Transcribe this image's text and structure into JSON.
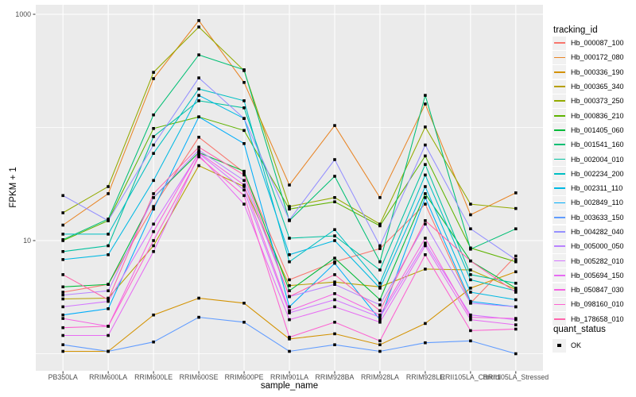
{
  "chart_data": {
    "type": "line",
    "title": "",
    "xlabel": "sample_name",
    "ylabel": "FPKM + 1",
    "y_scale": "log10",
    "ylim": [
      0.7,
      1230
    ],
    "y_ticks": [
      {
        "label": "10",
        "value": 10
      },
      {
        "label": "1000",
        "value": 1000
      }
    ],
    "y_gridlines_major": [
      10,
      1000
    ],
    "y_gridlines_minor": [
      1,
      100
    ],
    "grid": true,
    "legend_position": "right",
    "panel_bg": "#EBEBEB",
    "grid_color": "#FFFFFF",
    "tick_text_color": "#4D4D4D",
    "categories": [
      "PB350LA",
      "RRIM600LA",
      "RRIM600LE",
      "RRIM600SE",
      "RRIM600PE",
      "RRIM901LA",
      "RRIM928BA",
      "RRIM928LA",
      "RRIM928LE",
      "RRII105LA_Control",
      "RRII105LA_Stressed"
    ],
    "legend_title": "tracking_id",
    "marker": {
      "shape": "square",
      "color": "#000000",
      "size": 3.6
    },
    "series": [
      {
        "name": "Hb_000087_100",
        "color": "#F8766D",
        "values": [
          3.5,
          4.1,
          20,
          82,
          40,
          4.5,
          6.5,
          8.5,
          21,
          2.8,
          7.3
        ]
      },
      {
        "name": "Hb_000172_080",
        "color": "#E88526",
        "values": [
          13.7,
          26,
          270,
          880,
          250,
          31,
          104,
          24,
          161,
          16.9,
          26.4
        ]
      },
      {
        "name": "Hb_000336_190",
        "color": "#D39200",
        "values": [
          1.05,
          1.05,
          2.2,
          3.1,
          2.8,
          1.35,
          1.5,
          1.2,
          1.85,
          3.8,
          5.3
        ]
      },
      {
        "name": "Hb_000365_340",
        "color": "#B79F00",
        "values": [
          3.05,
          3.1,
          9,
          46,
          30,
          4.0,
          4.3,
          3.9,
          5.6,
          5.5,
          3.7
        ]
      },
      {
        "name": "Hb_000373_250",
        "color": "#93AA00",
        "values": [
          17.6,
          30,
          307,
          772,
          318,
          20,
          24,
          14,
          101,
          21,
          19.2
        ]
      },
      {
        "name": "Hb_000836_210",
        "color": "#5EB300",
        "values": [
          10,
          15,
          98,
          124,
          94,
          19,
          22,
          13.5,
          56,
          8.6,
          6.5
        ]
      },
      {
        "name": "Hb_001405_060",
        "color": "#00BA38",
        "values": [
          3.9,
          4.1,
          24,
          60,
          41,
          3.6,
          7.0,
          3.0,
          26,
          6.6,
          3.8
        ]
      },
      {
        "name": "Hb_001541_160",
        "color": "#00BF74",
        "values": [
          10.2,
          15.5,
          129,
          438,
          323,
          15,
          37,
          6.5,
          192,
          8.4,
          12.7
        ]
      },
      {
        "name": "Hb_002004_010",
        "color": "#00C19F",
        "values": [
          8.0,
          9.0,
          83,
          172,
          149,
          10.5,
          11,
          5.5,
          47,
          5.0,
          4.2
        ]
      },
      {
        "name": "Hb_002234_200",
        "color": "#00BFC4",
        "values": [
          11.4,
          11.4,
          59,
          219,
          172,
          6.5,
          12.5,
          4.2,
          38,
          4.5,
          3.6
        ]
      },
      {
        "name": "Hb_002311_110",
        "color": "#00B9E3",
        "values": [
          6.8,
          7.5,
          34,
          192,
          120,
          7.5,
          10,
          3.8,
          30,
          3.5,
          3.0
        ]
      },
      {
        "name": "Hb_002849_110",
        "color": "#00ADFA",
        "values": [
          2.2,
          2.5,
          19,
          124,
          72,
          2.6,
          6.3,
          2.0,
          24,
          2.9,
          2.6
        ]
      },
      {
        "name": "Hb_003633_150",
        "color": "#619CFF",
        "values": [
          1.2,
          1.05,
          1.27,
          2.1,
          1.9,
          1.05,
          1.2,
          1.05,
          1.25,
          1.3,
          1.0
        ]
      },
      {
        "name": "Hb_004282_040",
        "color": "#9590FF",
        "values": [
          25,
          15,
          70,
          274,
          120,
          15.2,
          52,
          9,
          70,
          12.7,
          6.8
        ]
      },
      {
        "name": "Hb_005000_050",
        "color": "#B983FF",
        "values": [
          3.3,
          3.6,
          24,
          63,
          34,
          3.2,
          4.1,
          2.7,
          14,
          2.8,
          2.6
        ]
      },
      {
        "name": "Hb_005282_010",
        "color": "#D376FF",
        "values": [
          2.6,
          2.9,
          14,
          59,
          28,
          2.3,
          3.0,
          2.1,
          9.5,
          2.2,
          2.0
        ]
      },
      {
        "name": "Hb_005694_150",
        "color": "#E76BF3",
        "values": [
          1.45,
          1.45,
          8,
          57,
          21,
          2.0,
          2.6,
          1.9,
          9,
          2.0,
          1.8
        ]
      },
      {
        "name": "Hb_050847_030",
        "color": "#F564E3",
        "values": [
          2.05,
          1.75,
          12,
          60,
          31,
          2.4,
          3.4,
          2.2,
          10.5,
          2.1,
          2.05
        ]
      },
      {
        "name": "Hb_098160_010",
        "color": "#FD61D1",
        "values": [
          1.7,
          1.75,
          10,
          55,
          25,
          1.4,
          1.9,
          1.3,
          7.5,
          1.6,
          1.65
        ]
      },
      {
        "name": "Hb_178658_010",
        "color": "#FF65AC",
        "values": [
          5.0,
          3.0,
          26,
          67,
          38,
          3.2,
          5.0,
          2.4,
          15,
          6.6,
          3.5
        ]
      }
    ],
    "quant_legend": {
      "title": "quant_status",
      "items": [
        {
          "label": "OK",
          "marker": "black-square"
        }
      ]
    }
  }
}
